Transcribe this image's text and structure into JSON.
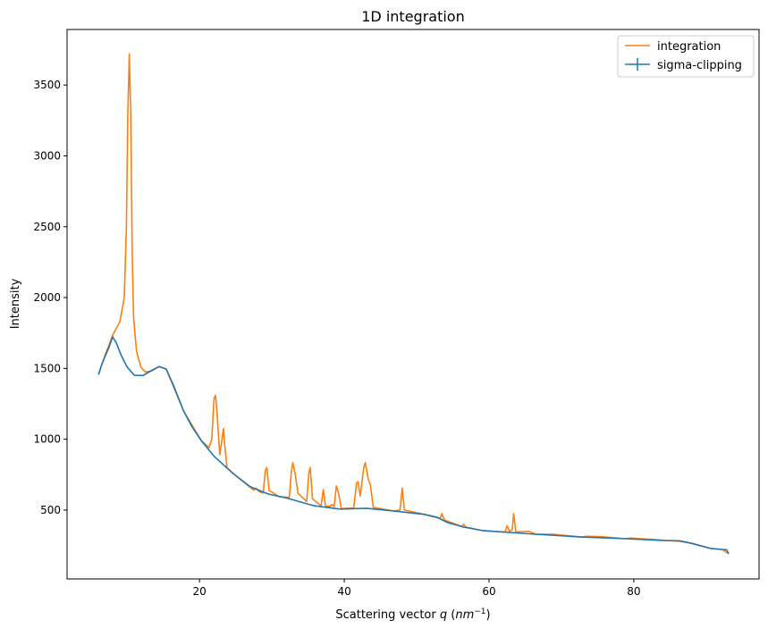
{
  "chart_data": {
    "type": "line",
    "title": "1D integration",
    "xlabel": "Scattering vector q (nm⁻¹)",
    "xlabel_parts": {
      "main": "Scattering vector ",
      "var": "q",
      "open": " (",
      "unit": "nm",
      "exp": "−1",
      "close": ")"
    },
    "ylabel": "Intensity",
    "xlim": [
      1.7,
      97.3
    ],
    "ylim": [
      14,
      3892
    ],
    "xticks": [
      20,
      40,
      60,
      80
    ],
    "yticks": [
      500,
      1000,
      1500,
      2000,
      2500,
      3000,
      3500
    ],
    "grid": false,
    "legend_placement": "top-right",
    "series": [
      {
        "name": "integration",
        "color": "#ff7f0e",
        "points": [
          [
            6.05,
            1457
          ],
          [
            7,
            1600
          ],
          [
            8,
            1735
          ],
          [
            9,
            1830
          ],
          [
            9.6,
            2000
          ],
          [
            9.9,
            2500
          ],
          [
            10.1,
            3300
          ],
          [
            10.3,
            3720
          ],
          [
            10.5,
            3300
          ],
          [
            10.7,
            2300
          ],
          [
            10.9,
            1850
          ],
          [
            11.3,
            1620
          ],
          [
            11.9,
            1510
          ],
          [
            12.5,
            1475
          ],
          [
            13.3,
            1480
          ],
          [
            14.4,
            1513
          ],
          [
            15.4,
            1495
          ],
          [
            17.8,
            1200
          ],
          [
            20.2,
            993
          ],
          [
            21.3,
            940
          ],
          [
            21.7,
            1000
          ],
          [
            22.0,
            1290
          ],
          [
            22.2,
            1310
          ],
          [
            22.4,
            1200
          ],
          [
            22.8,
            890
          ],
          [
            23.1,
            1000
          ],
          [
            23.3,
            1075
          ],
          [
            23.5,
            950
          ],
          [
            23.8,
            800
          ],
          [
            24.6,
            760
          ],
          [
            27.5,
            640
          ],
          [
            27.8,
            655
          ],
          [
            28.2,
            630
          ],
          [
            28.8,
            620
          ],
          [
            29.1,
            780
          ],
          [
            29.3,
            800
          ],
          [
            29.6,
            640
          ],
          [
            31,
            595
          ],
          [
            32.4,
            590
          ],
          [
            32.7,
            780
          ],
          [
            32.9,
            835
          ],
          [
            33.2,
            760
          ],
          [
            33.6,
            620
          ],
          [
            34.8,
            560
          ],
          [
            35.1,
            760
          ],
          [
            35.3,
            800
          ],
          [
            35.6,
            580
          ],
          [
            36.8,
            530
          ],
          [
            37.1,
            645
          ],
          [
            37.4,
            530
          ],
          [
            38,
            525
          ],
          [
            38.3,
            540
          ],
          [
            38.6,
            525
          ],
          [
            38.9,
            670
          ],
          [
            39.2,
            620
          ],
          [
            39.6,
            510
          ],
          [
            41.3,
            515
          ],
          [
            41.7,
            690
          ],
          [
            41.9,
            700
          ],
          [
            42.2,
            600
          ],
          [
            42.7,
            800
          ],
          [
            42.9,
            835
          ],
          [
            43.3,
            720
          ],
          [
            43.6,
            680
          ],
          [
            44,
            520
          ],
          [
            46.8,
            494
          ],
          [
            47.7,
            500
          ],
          [
            48,
            655
          ],
          [
            48.3,
            500
          ],
          [
            51.1,
            469
          ],
          [
            53.2,
            440
          ],
          [
            53.5,
            475
          ],
          [
            53.8,
            430
          ],
          [
            56.2,
            385
          ],
          [
            56.5,
            400
          ],
          [
            56.8,
            380
          ],
          [
            59.1,
            355
          ],
          [
            62.2,
            345
          ],
          [
            62.5,
            390
          ],
          [
            62.8,
            350
          ],
          [
            63.2,
            360
          ],
          [
            63.4,
            475
          ],
          [
            63.7,
            345
          ],
          [
            65.5,
            350
          ],
          [
            66.5,
            329
          ],
          [
            68.8,
            330
          ],
          [
            72.7,
            310
          ],
          [
            73.5,
            315
          ],
          [
            75.5,
            312
          ],
          [
            78.9,
            298
          ],
          [
            79.5,
            303
          ],
          [
            86.3,
            280
          ],
          [
            88,
            265
          ],
          [
            90.6,
            229
          ],
          [
            92.2,
            222
          ],
          [
            93.1,
            192
          ]
        ]
      },
      {
        "name": "sigma-clipping",
        "color": "#1f77b4",
        "errorbar": true,
        "points": [
          [
            6.05,
            1457
          ],
          [
            6.5,
            1530
          ],
          [
            7,
            1590
          ],
          [
            7.5,
            1650
          ],
          [
            8,
            1722
          ],
          [
            8.5,
            1680
          ],
          [
            9.2,
            1590
          ],
          [
            10,
            1510
          ],
          [
            11,
            1451
          ],
          [
            12.2,
            1450
          ],
          [
            13.2,
            1480
          ],
          [
            14.4,
            1513
          ],
          [
            15.4,
            1495
          ],
          [
            16.5,
            1370
          ],
          [
            17.8,
            1200
          ],
          [
            19,
            1085
          ],
          [
            20.2,
            993
          ],
          [
            22,
            880
          ],
          [
            24.6,
            760
          ],
          [
            27,
            665
          ],
          [
            29.5,
            613
          ],
          [
            32,
            585
          ],
          [
            35.7,
            532
          ],
          [
            39.4,
            507
          ],
          [
            43.1,
            513
          ],
          [
            46.8,
            494
          ],
          [
            51.1,
            469
          ],
          [
            52.8,
            450
          ],
          [
            54.2,
            413
          ],
          [
            56.5,
            380
          ],
          [
            59.1,
            355
          ],
          [
            66.5,
            329
          ],
          [
            72.7,
            310
          ],
          [
            78.9,
            298
          ],
          [
            84,
            285
          ],
          [
            86.3,
            283
          ],
          [
            88,
            265
          ],
          [
            90.6,
            229
          ],
          [
            92.2,
            222
          ],
          [
            92.8,
            220
          ],
          [
            93.1,
            192
          ]
        ]
      }
    ]
  }
}
